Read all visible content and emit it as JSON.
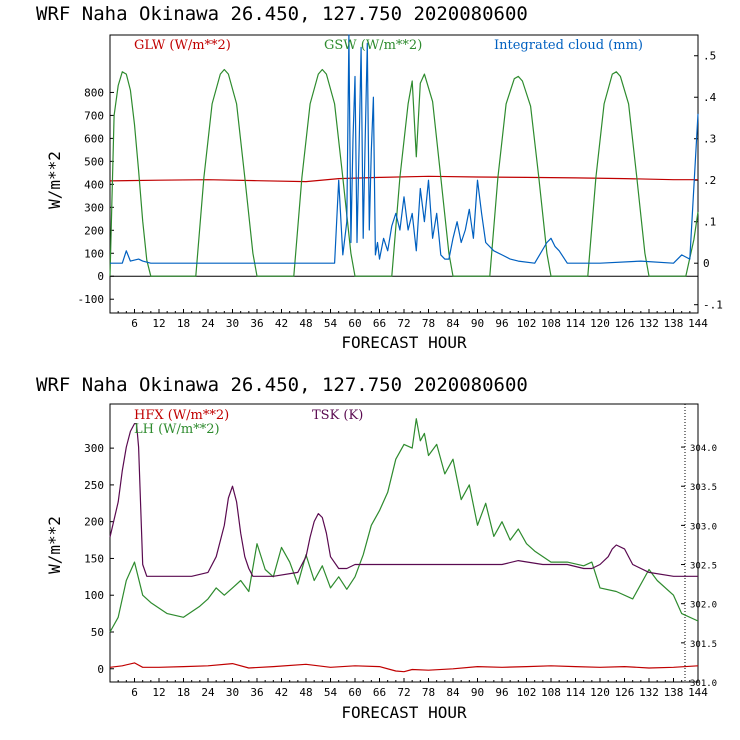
{
  "chart_data": [
    {
      "type": "line",
      "title": "WRF   Naha Okinawa   26.450, 127.750   2020080600",
      "xlabel": "FORECAST HOUR",
      "ylabel": "W/m**2",
      "xlim": [
        0,
        144
      ],
      "ylim": [
        -160,
        1050
      ],
      "xticks": [
        6,
        12,
        18,
        24,
        30,
        36,
        42,
        48,
        54,
        60,
        66,
        72,
        78,
        84,
        90,
        96,
        102,
        108,
        114,
        120,
        126,
        132,
        138,
        144
      ],
      "yticks": [
        -100,
        0,
        100,
        200,
        300,
        400,
        500,
        600,
        700,
        800
      ],
      "y2label": "Integrated cloud (mm)",
      "y2lim": [
        -0.12,
        0.55
      ],
      "y2ticks": [
        ".5",
        ".4",
        ".3",
        ".2",
        ".1",
        "0",
        "-.1"
      ],
      "y2tick_values": [
        0.5,
        0.4,
        0.3,
        0.2,
        0.1,
        0,
        -0.1
      ],
      "series": [
        {
          "name": "GLW (W/m**2)",
          "color": "#c00000",
          "axis": "left",
          "x": [
            0,
            12,
            24,
            36,
            48,
            56,
            66,
            78,
            90,
            102,
            114,
            126,
            138,
            144
          ],
          "y": [
            415,
            418,
            420,
            416,
            412,
            425,
            430,
            435,
            432,
            430,
            428,
            425,
            420,
            420
          ]
        },
        {
          "name": "GSW (W/m**2)",
          "color": "#2e8b2e",
          "axis": "left",
          "x": [
            0,
            1,
            2,
            3,
            4,
            5,
            6,
            7,
            8,
            9,
            10,
            11,
            12,
            21,
            23,
            25,
            27,
            28,
            29,
            31,
            33,
            35,
            36,
            45,
            47,
            49,
            51,
            52,
            53,
            55,
            57,
            59,
            60,
            69,
            71,
            73,
            74,
            75,
            76,
            77,
            79,
            81,
            83,
            84,
            93,
            95,
            97,
            99,
            100,
            101,
            103,
            105,
            107,
            108,
            117,
            119,
            121,
            123,
            124,
            125,
            127,
            129,
            131,
            132,
            141,
            143,
            144
          ],
          "y": [
            0,
            700,
            830,
            890,
            880,
            810,
            660,
            460,
            240,
            70,
            0,
            0,
            0,
            0,
            430,
            750,
            880,
            900,
            880,
            750,
            430,
            100,
            0,
            0,
            430,
            750,
            880,
            900,
            880,
            750,
            430,
            100,
            0,
            0,
            430,
            750,
            850,
            520,
            840,
            880,
            760,
            430,
            100,
            0,
            0,
            430,
            750,
            860,
            870,
            850,
            740,
            430,
            100,
            0,
            0,
            430,
            750,
            880,
            890,
            870,
            750,
            430,
            100,
            0,
            0,
            160,
            280
          ]
        },
        {
          "name": "Integrated cloud (mm)",
          "color": "#0060c0",
          "axis": "right",
          "x": [
            0,
            3,
            4,
            5,
            7,
            8,
            10,
            25,
            55,
            56,
            57,
            58,
            58.5,
            59,
            59.5,
            60,
            60.5,
            61,
            61.5,
            62,
            62.5,
            63,
            63.5,
            64,
            64.5,
            65,
            65.5,
            66,
            67,
            68,
            69,
            70,
            71,
            72,
            73,
            74,
            75,
            76,
            77,
            78,
            79,
            80,
            81,
            82,
            83,
            84,
            85,
            86,
            87,
            88,
            89,
            90,
            91,
            92,
            94,
            96,
            98,
            100,
            104,
            107,
            108,
            109,
            110,
            112,
            120,
            130,
            138,
            140,
            142,
            144
          ],
          "y": [
            0,
            0,
            0.03,
            0.005,
            0.01,
            0.005,
            0,
            0,
            0,
            0.2,
            0.02,
            0.1,
            0.55,
            0.05,
            0.3,
            0.45,
            0.05,
            0.28,
            0.52,
            0.06,
            0.3,
            0.53,
            0.08,
            0.27,
            0.4,
            0.02,
            0.05,
            0.01,
            0.06,
            0.03,
            0.09,
            0.12,
            0.08,
            0.16,
            0.08,
            0.12,
            0.03,
            0.18,
            0.1,
            0.2,
            0.06,
            0.12,
            0.02,
            0.01,
            0.01,
            0.06,
            0.1,
            0.05,
            0.08,
            0.13,
            0.06,
            0.2,
            0.12,
            0.05,
            0.03,
            0.02,
            0.01,
            0.005,
            0,
            0.05,
            0.06,
            0.04,
            0.03,
            0,
            0,
            0.005,
            0,
            0.02,
            0.01,
            0.36
          ]
        }
      ],
      "legend": [
        "GLW (W/m**2)",
        "GSW (W/m**2)",
        "Integrated cloud (mm)"
      ],
      "legend_position": "top"
    },
    {
      "type": "line",
      "title": "WRF   Naha Okinawa   26.450, 127.750   2020080600",
      "xlabel": "FORECAST HOUR",
      "ylabel": "W/m**2",
      "xlim": [
        0,
        144
      ],
      "ylim": [
        -18,
        360
      ],
      "xticks": [
        6,
        12,
        18,
        24,
        30,
        36,
        42,
        48,
        54,
        60,
        66,
        72,
        78,
        84,
        90,
        96,
        102,
        108,
        114,
        120,
        126,
        132,
        138,
        144
      ],
      "yticks": [
        0,
        50,
        100,
        150,
        200,
        250,
        300
      ],
      "y2label": "TSK (K)",
      "y2lim": [
        301.0,
        304.55
      ],
      "y2ticks": [
        "304.0",
        "303.5",
        "303.0",
        "302.5",
        "302.0",
        "301.5",
        "301.0"
      ],
      "y2tick_values": [
        304.0,
        303.5,
        303.0,
        302.5,
        302.0,
        301.5,
        301.0
      ],
      "series": [
        {
          "name": "HFX (W/m**2)",
          "color": "#c00000",
          "axis": "left",
          "x": [
            0,
            3,
            6,
            8,
            12,
            18,
            24,
            30,
            34,
            40,
            48,
            54,
            60,
            66,
            70,
            72,
            74,
            78,
            84,
            90,
            96,
            102,
            108,
            114,
            120,
            126,
            132,
            138,
            144
          ],
          "y": [
            2,
            4,
            8,
            2,
            2,
            3,
            4,
            7,
            1,
            3,
            6,
            2,
            4,
            3,
            -3,
            -4,
            -1,
            -2,
            0,
            3,
            2,
            3,
            4,
            3,
            2,
            3,
            1,
            2,
            4
          ]
        },
        {
          "name": "LH (W/m**2)",
          "color": "#2e8b2e",
          "axis": "left",
          "x": [
            0,
            2,
            4,
            6,
            8,
            10,
            14,
            18,
            22,
            24,
            26,
            28,
            30,
            32,
            34,
            36,
            38,
            40,
            42,
            44,
            46,
            48,
            50,
            52,
            54,
            56,
            58,
            60,
            62,
            64,
            66,
            68,
            70,
            72,
            74,
            75,
            76,
            77,
            78,
            80,
            82,
            84,
            86,
            88,
            90,
            92,
            94,
            96,
            98,
            100,
            102,
            104,
            108,
            112,
            116,
            118,
            120,
            124,
            128,
            132,
            134,
            138,
            140,
            144
          ],
          "y": [
            50,
            70,
            120,
            145,
            100,
            90,
            75,
            70,
            85,
            95,
            110,
            100,
            110,
            120,
            105,
            170,
            135,
            125,
            165,
            145,
            115,
            155,
            120,
            140,
            110,
            125,
            108,
            125,
            155,
            195,
            215,
            240,
            285,
            305,
            300,
            340,
            310,
            320,
            290,
            305,
            265,
            285,
            230,
            250,
            195,
            225,
            180,
            200,
            175,
            190,
            170,
            160,
            145,
            145,
            140,
            145,
            110,
            105,
            95,
            135,
            120,
            100,
            75,
            65
          ]
        },
        {
          "name": "TSK (K)",
          "color": "#5a0a50",
          "axis": "right",
          "x": [
            0,
            2,
            3,
            4,
            5,
            6,
            6.5,
            7,
            8,
            9,
            10,
            14,
            20,
            24,
            26,
            28,
            29,
            30,
            31,
            32,
            33,
            34,
            35,
            40,
            46,
            48,
            49,
            50,
            51,
            52,
            53,
            54,
            56,
            58,
            60,
            66,
            72,
            80,
            90,
            96,
            100,
            106,
            112,
            116,
            118,
            120,
            122,
            123,
            124,
            126,
            128,
            132,
            138,
            144
          ],
          "y": [
            302.85,
            303.3,
            303.7,
            304.0,
            304.2,
            304.3,
            304.3,
            304.0,
            302.5,
            302.35,
            302.35,
            302.35,
            302.35,
            302.4,
            302.6,
            303.0,
            303.35,
            303.5,
            303.3,
            302.9,
            302.6,
            302.45,
            302.35,
            302.35,
            302.4,
            302.6,
            302.85,
            303.05,
            303.15,
            303.1,
            302.9,
            302.6,
            302.45,
            302.45,
            302.5,
            302.5,
            302.5,
            302.5,
            302.5,
            302.5,
            302.55,
            302.5,
            302.5,
            302.45,
            302.45,
            302.5,
            302.6,
            302.7,
            302.75,
            302.7,
            302.5,
            302.4,
            302.35,
            302.35
          ]
        }
      ],
      "legend": [
        "HFX (W/m**2)",
        "LH  (W/m**2)",
        "TSK (K)"
      ],
      "legend_position": "top-left"
    }
  ]
}
